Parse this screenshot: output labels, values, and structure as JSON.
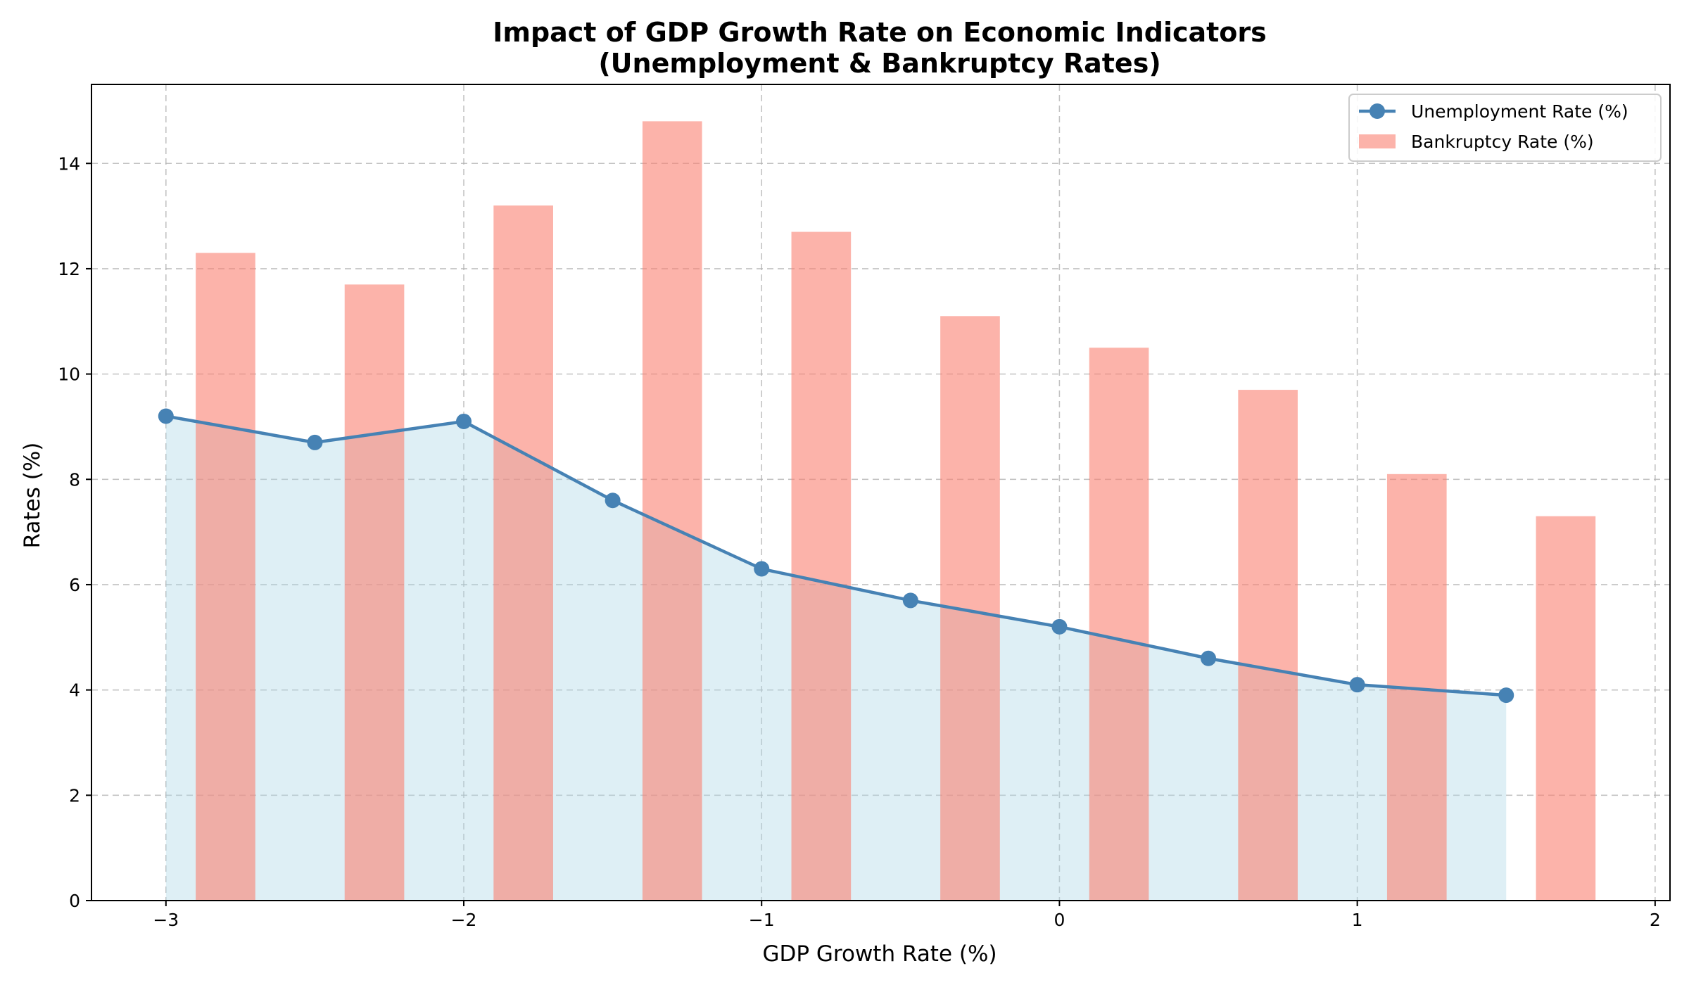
{
  "chart_data": {
    "type": "bar",
    "title_line1": "Impact of GDP Growth Rate on Economic Indicators",
    "title_line2": "(Unemployment & Bankruptcy Rates)",
    "xlabel": "GDP Growth Rate (%)",
    "ylabel": "Rates (%)",
    "xlim": [
      -3.25,
      2.05
    ],
    "ylim": [
      0,
      15.5
    ],
    "xticks": [
      -3,
      -2,
      -1,
      0,
      1,
      2
    ],
    "xtick_labels": [
      "−3",
      "−2",
      "−1",
      "0",
      "1",
      "2"
    ],
    "yticks": [
      0,
      2,
      4,
      6,
      8,
      10,
      12,
      14
    ],
    "ytick_labels": [
      "0",
      "2",
      "4",
      "6",
      "8",
      "10",
      "12",
      "14"
    ],
    "grid": true,
    "legend_position": "top-right",
    "x": [
      -3.0,
      -2.5,
      -2.0,
      -1.5,
      -1.0,
      -0.5,
      0.0,
      0.5,
      1.0,
      1.5
    ],
    "series": [
      {
        "name": "Unemployment Rate (%)",
        "kind": "line",
        "color": "#4682b4",
        "fill_color": "#add8e6",
        "values": [
          9.2,
          8.7,
          9.1,
          7.6,
          6.3,
          5.7,
          5.2,
          4.6,
          4.1,
          3.9
        ]
      },
      {
        "name": "Bankruptcy Rate (%)",
        "kind": "bar",
        "color": "#fa8072",
        "x_offset": 0.2,
        "bar_width": 0.2,
        "values": [
          12.3,
          11.7,
          13.2,
          14.8,
          12.7,
          11.1,
          10.5,
          9.7,
          8.1,
          7.3
        ]
      }
    ]
  }
}
